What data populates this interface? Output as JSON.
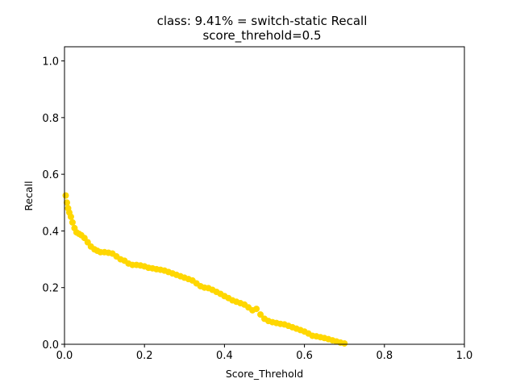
{
  "chart_data": {
    "type": "scatter",
    "title": "class: 9.41% = switch-static Recall",
    "subtitle": "score_threhold=0.5",
    "xlabel": "Score_Threhold",
    "ylabel": "Recall",
    "xlim": [
      0.0,
      1.0
    ],
    "ylim": [
      0.0,
      1.05
    ],
    "xticks": [
      "0.0",
      "0.2",
      "0.4",
      "0.6",
      "0.8",
      "1.0"
    ],
    "yticks": [
      "0.0",
      "0.2",
      "0.4",
      "0.6",
      "0.8",
      "1.0"
    ],
    "grid": false,
    "legend": "none",
    "series": [
      {
        "color": "#FFD700",
        "marker": "circle",
        "x": [
          0.003,
          0.006,
          0.009,
          0.012,
          0.016,
          0.02,
          0.025,
          0.03,
          0.036,
          0.042,
          0.05,
          0.058,
          0.066,
          0.075,
          0.082,
          0.09,
          0.1,
          0.11,
          0.12,
          0.13,
          0.14,
          0.15,
          0.16,
          0.17,
          0.18,
          0.19,
          0.2,
          0.21,
          0.22,
          0.23,
          0.24,
          0.25,
          0.26,
          0.27,
          0.28,
          0.29,
          0.3,
          0.31,
          0.32,
          0.33,
          0.34,
          0.35,
          0.36,
          0.37,
          0.38,
          0.39,
          0.4,
          0.41,
          0.42,
          0.43,
          0.44,
          0.45,
          0.46,
          0.47,
          0.48,
          0.49,
          0.5,
          0.51,
          0.52,
          0.53,
          0.54,
          0.55,
          0.56,
          0.57,
          0.58,
          0.59,
          0.6,
          0.61,
          0.62,
          0.63,
          0.64,
          0.65,
          0.66,
          0.67,
          0.68,
          0.69,
          0.7
        ],
        "y": [
          0.525,
          0.5,
          0.48,
          0.465,
          0.45,
          0.43,
          0.41,
          0.395,
          0.39,
          0.385,
          0.375,
          0.36,
          0.345,
          0.335,
          0.33,
          0.325,
          0.325,
          0.323,
          0.32,
          0.31,
          0.3,
          0.295,
          0.285,
          0.28,
          0.28,
          0.278,
          0.275,
          0.27,
          0.268,
          0.265,
          0.263,
          0.26,
          0.255,
          0.25,
          0.245,
          0.24,
          0.235,
          0.23,
          0.225,
          0.215,
          0.205,
          0.2,
          0.198,
          0.192,
          0.185,
          0.178,
          0.17,
          0.163,
          0.155,
          0.15,
          0.145,
          0.14,
          0.13,
          0.12,
          0.125,
          0.105,
          0.09,
          0.082,
          0.078,
          0.075,
          0.072,
          0.07,
          0.065,
          0.06,
          0.055,
          0.05,
          0.045,
          0.038,
          0.03,
          0.028,
          0.025,
          0.022,
          0.018,
          0.014,
          0.01,
          0.006,
          0.003
        ]
      }
    ]
  }
}
